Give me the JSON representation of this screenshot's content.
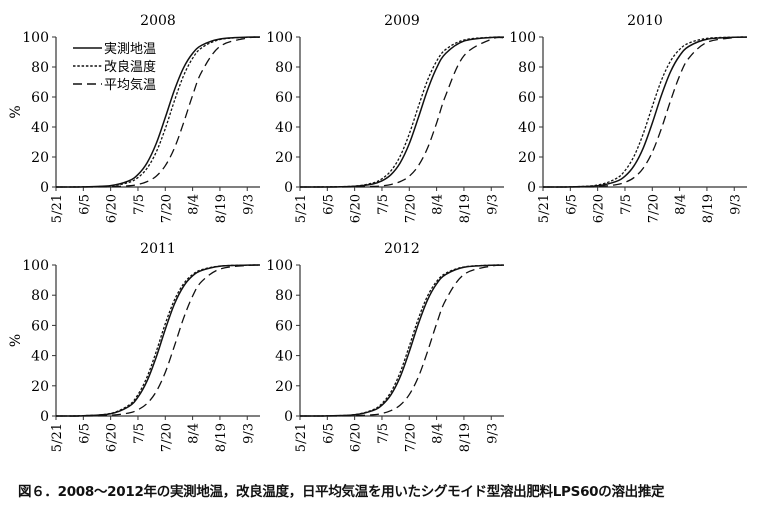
{
  "caption": "図６．2008～2012年の実測地温，改良温度，日平均気温を用いたシグモイド型溶出肥料LPS60の溶出推定",
  "chart_data": [
    {
      "type": "line",
      "title": "2008",
      "ylabel": "%",
      "ylim": [
        0,
        100
      ],
      "yticks": [
        "0",
        "20",
        "40",
        "60",
        "80",
        "100"
      ],
      "xlabel_unit": "days since 5/21",
      "xlim": [
        0,
        112
      ],
      "xticks": [
        {
          "day": 0,
          "label": "5/21"
        },
        {
          "day": 15,
          "label": "6/5"
        },
        {
          "day": 30,
          "label": "6/20"
        },
        {
          "day": 45,
          "label": "7/5"
        },
        {
          "day": 60,
          "label": "7/20"
        },
        {
          "day": 75,
          "label": "8/4"
        },
        {
          "day": 90,
          "label": "8/19"
        },
        {
          "day": 105,
          "label": "9/3"
        }
      ],
      "legend": {
        "placement": "top-left",
        "entries": [
          "実測地温",
          "改良温度",
          "平均気温"
        ]
      },
      "x": [
        0,
        15,
        30,
        40,
        45,
        50,
        55,
        60,
        65,
        70,
        75,
        80,
        90,
        105,
        112
      ],
      "series": [
        {
          "name": "実測地温",
          "style": "solid",
          "values": [
            0,
            0.1,
            0.9,
            4.1,
            8.3,
            16.1,
            28.9,
            46.3,
            64.6,
            79.4,
            89.1,
            94.5,
            98.7,
            99.9,
            100
          ]
        },
        {
          "name": "改良温度",
          "style": "dotted",
          "values": [
            0,
            0.1,
            0.7,
            3.1,
            6.3,
            12.5,
            23.2,
            38.9,
            57.4,
            74.1,
            85.8,
            92.8,
            98.3,
            99.8,
            99.9
          ]
        },
        {
          "name": "平均気温",
          "style": "dashed",
          "values": [
            0,
            0,
            0.2,
            0.8,
            1.7,
            3.6,
            7.2,
            14.2,
            25.9,
            42.6,
            61.1,
            76.8,
            93.7,
            99.3,
            99.8
          ]
        }
      ]
    },
    {
      "type": "line",
      "title": "2009",
      "ylim": [
        0,
        100
      ],
      "yticks": [
        "0",
        "20",
        "40",
        "60",
        "80",
        "100"
      ],
      "xlim": [
        0,
        112
      ],
      "xticks": [
        {
          "day": 0,
          "label": "5/21"
        },
        {
          "day": 15,
          "label": "6/5"
        },
        {
          "day": 30,
          "label": "6/20"
        },
        {
          "day": 45,
          "label": "7/5"
        },
        {
          "day": 60,
          "label": "7/20"
        },
        {
          "day": 75,
          "label": "8/4"
        },
        {
          "day": 90,
          "label": "8/19"
        },
        {
          "day": 105,
          "label": "9/3"
        }
      ],
      "x": [
        0,
        15,
        30,
        40,
        45,
        50,
        55,
        60,
        65,
        70,
        75,
        80,
        90,
        105,
        112
      ],
      "series": [
        {
          "name": "実測地温",
          "style": "solid",
          "values": [
            0,
            0,
            0.5,
            2.0,
            4.1,
            8.3,
            16.1,
            28.9,
            46.3,
            64.6,
            79.4,
            89.1,
            97.3,
            99.7,
            99.9
          ]
        },
        {
          "name": "改良温度",
          "style": "dotted",
          "values": [
            0,
            0.1,
            0.6,
            2.7,
            5.5,
            10.9,
            20.6,
            35.4,
            53.7,
            71.1,
            83.9,
            91.7,
            98.0,
            99.8,
            99.9
          ]
        },
        {
          "name": "平均気温",
          "style": "dashed",
          "values": [
            0,
            0,
            0.1,
            0.4,
            0.8,
            1.7,
            3.6,
            7.2,
            14.2,
            25.9,
            42.6,
            61.1,
            87.5,
            98.5,
            99.5
          ]
        }
      ]
    },
    {
      "type": "line",
      "title": "2010",
      "ylim": [
        0,
        100
      ],
      "yticks": [
        "0",
        "20",
        "40",
        "60",
        "80",
        "100"
      ],
      "xlim": [
        0,
        112
      ],
      "xticks": [
        {
          "day": 0,
          "label": "5/21"
        },
        {
          "day": 15,
          "label": "6/5"
        },
        {
          "day": 30,
          "label": "6/20"
        },
        {
          "day": 45,
          "label": "7/5"
        },
        {
          "day": 60,
          "label": "7/20"
        },
        {
          "day": 75,
          "label": "8/4"
        },
        {
          "day": 90,
          "label": "8/19"
        },
        {
          "day": 105,
          "label": "9/3"
        }
      ],
      "x": [
        0,
        15,
        30,
        40,
        45,
        50,
        55,
        60,
        65,
        70,
        75,
        80,
        90,
        105,
        112
      ],
      "series": [
        {
          "name": "実測地温",
          "style": "solid",
          "values": [
            0,
            0.1,
            0.8,
            3.6,
            7.2,
            14.2,
            25.9,
            42.6,
            61.1,
            76.8,
            87.5,
            93.7,
            98.5,
            99.8,
            99.9
          ]
        },
        {
          "name": "改良温度",
          "style": "dotted",
          "values": [
            0,
            0.1,
            1.3,
            5.5,
            10.9,
            20.6,
            35.4,
            53.7,
            71.1,
            83.9,
            91.7,
            95.9,
            99.1,
            99.9,
            100
          ]
        },
        {
          "name": "平均気温",
          "style": "dashed",
          "values": [
            0,
            0,
            0.3,
            1.5,
            3.1,
            6.3,
            12.5,
            23.2,
            38.9,
            57.4,
            74.1,
            85.8,
            96.4,
            99.6,
            99.9
          ]
        }
      ]
    },
    {
      "type": "line",
      "title": "2011",
      "ylabel": "%",
      "ylim": [
        0,
        100
      ],
      "yticks": [
        "0",
        "20",
        "40",
        "60",
        "80",
        "100"
      ],
      "xlim": [
        0,
        112
      ],
      "xticks": [
        {
          "day": 0,
          "label": "5/21"
        },
        {
          "day": 15,
          "label": "6/5"
        },
        {
          "day": 30,
          "label": "6/20"
        },
        {
          "day": 45,
          "label": "7/5"
        },
        {
          "day": 60,
          "label": "7/20"
        },
        {
          "day": 75,
          "label": "8/4"
        },
        {
          "day": 90,
          "label": "8/19"
        },
        {
          "day": 105,
          "label": "9/3"
        }
      ],
      "x": [
        0,
        15,
        30,
        40,
        45,
        50,
        55,
        60,
        65,
        70,
        75,
        80,
        90,
        105,
        112
      ],
      "series": [
        {
          "name": "実測地温",
          "style": "solid",
          "values": [
            0,
            0.2,
            1.5,
            6.3,
            12.5,
            23.2,
            38.9,
            57.4,
            74.1,
            85.8,
            92.8,
            96.4,
            99.2,
            99.9,
            100
          ]
        },
        {
          "name": "改良温度",
          "style": "dotted",
          "values": [
            0,
            0.2,
            1.7,
            7.2,
            14.2,
            25.9,
            42.6,
            61.1,
            76.8,
            87.5,
            93.7,
            96.9,
            99.3,
            99.9,
            100
          ]
        },
        {
          "name": "平均気温",
          "style": "dashed",
          "values": [
            0,
            0,
            0.5,
            2.0,
            4.1,
            8.3,
            16.1,
            28.9,
            46.3,
            64.6,
            79.4,
            89.1,
            97.3,
            99.7,
            99.9
          ]
        }
      ]
    },
    {
      "type": "line",
      "title": "2012",
      "ylim": [
        0,
        100
      ],
      "yticks": [
        "0",
        "20",
        "40",
        "60",
        "80",
        "100"
      ],
      "xlim": [
        0,
        112
      ],
      "xticks": [
        {
          "day": 0,
          "label": "5/21"
        },
        {
          "day": 15,
          "label": "6/5"
        },
        {
          "day": 30,
          "label": "6/20"
        },
        {
          "day": 45,
          "label": "7/5"
        },
        {
          "day": 60,
          "label": "7/20"
        },
        {
          "day": 75,
          "label": "8/4"
        },
        {
          "day": 90,
          "label": "8/19"
        },
        {
          "day": 105,
          "label": "9/3"
        }
      ],
      "x": [
        0,
        15,
        30,
        40,
        45,
        50,
        55,
        60,
        65,
        70,
        75,
        80,
        90,
        105,
        112
      ],
      "series": [
        {
          "name": "実測地温",
          "style": "solid",
          "values": [
            0,
            0.1,
            0.8,
            3.6,
            7.2,
            14.2,
            25.9,
            42.6,
            61.1,
            76.8,
            87.5,
            93.7,
            98.5,
            99.8,
            99.9
          ]
        },
        {
          "name": "改良温度",
          "style": "dotted",
          "values": [
            0,
            0.1,
            0.9,
            4.1,
            8.3,
            16.1,
            28.9,
            46.3,
            64.6,
            79.4,
            89.1,
            94.5,
            98.7,
            99.9,
            100
          ]
        },
        {
          "name": "平均気温",
          "style": "dashed",
          "values": [
            0,
            0,
            0.2,
            0.8,
            1.7,
            3.6,
            7.2,
            14.2,
            25.9,
            42.6,
            61.1,
            76.8,
            93.7,
            99.3,
            99.8
          ]
        }
      ]
    }
  ]
}
